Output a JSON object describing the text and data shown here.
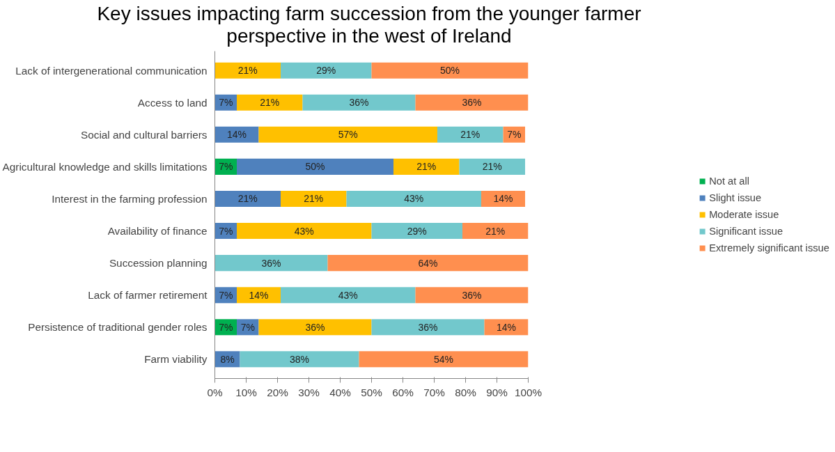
{
  "chart_data": {
    "type": "bar",
    "orientation": "horizontal",
    "stacked": true,
    "title": "Key issues impacting farm succession from the younger farmer perspective in the west of Ireland",
    "categories": [
      "Lack of intergenerational communication",
      "Access to land",
      "Social and cultural barriers",
      "Agricultural knowledge and skills limitations",
      "Interest in the farming profession",
      "Availability of finance",
      "Succession planning",
      "Lack of farmer retirement",
      "Persistence of traditional gender roles",
      "Farm viability"
    ],
    "series": [
      {
        "name": "Not at all",
        "color": "#00b050",
        "values": [
          null,
          null,
          null,
          7,
          null,
          null,
          null,
          null,
          7,
          null
        ],
        "value_labels": [
          null,
          null,
          null,
          "7%",
          null,
          null,
          null,
          null,
          "7%",
          null
        ]
      },
      {
        "name": "Slight issue",
        "color": "#4f81bd",
        "values": [
          null,
          7,
          14,
          50,
          21,
          7,
          null,
          7,
          7,
          8
        ],
        "value_labels": [
          null,
          "7%",
          "14%",
          "50%",
          "21%",
          "7%",
          null,
          "7%",
          "7%",
          "8%"
        ]
      },
      {
        "name": "Moderate issue",
        "color": "#ffc000",
        "values": [
          21,
          21,
          57,
          21,
          21,
          43,
          null,
          14,
          36,
          null
        ],
        "value_labels": [
          "21%",
          "21%",
          "57%",
          "21%",
          "21%",
          "43%",
          null,
          "14%",
          "36%",
          null
        ]
      },
      {
        "name": "Significant issue",
        "color": "#72c8cc",
        "values": [
          29,
          36,
          21,
          21,
          43,
          29,
          36,
          43,
          36,
          38
        ],
        "value_labels": [
          "29%",
          "36%",
          "21%",
          "21%",
          "43%",
          "29%",
          "36%",
          "43%",
          "36%",
          "38%"
        ]
      },
      {
        "name": "Extremely significant issue",
        "color": "#ff8f4f",
        "values": [
          50,
          36,
          7,
          null,
          14,
          21,
          64,
          36,
          14,
          54
        ],
        "value_labels": [
          "50%",
          "36%",
          "7%",
          null,
          "14%",
          "21%",
          "64%",
          "36%",
          "14%",
          "54%"
        ]
      }
    ],
    "xlim": [
      0,
      100
    ],
    "xticks": [
      {
        "value": 0,
        "label": "0%"
      },
      {
        "value": 10,
        "label": "10%"
      },
      {
        "value": 20,
        "label": "20%"
      },
      {
        "value": 30,
        "label": "30%"
      },
      {
        "value": 40,
        "label": "40%"
      },
      {
        "value": 50,
        "label": "50%"
      },
      {
        "value": 60,
        "label": "60%"
      },
      {
        "value": 70,
        "label": "70%"
      },
      {
        "value": 80,
        "label": "80%"
      },
      {
        "value": 90,
        "label": "90%"
      },
      {
        "value": 100,
        "label": "100%"
      }
    ],
    "grid": false,
    "legend": "right"
  }
}
